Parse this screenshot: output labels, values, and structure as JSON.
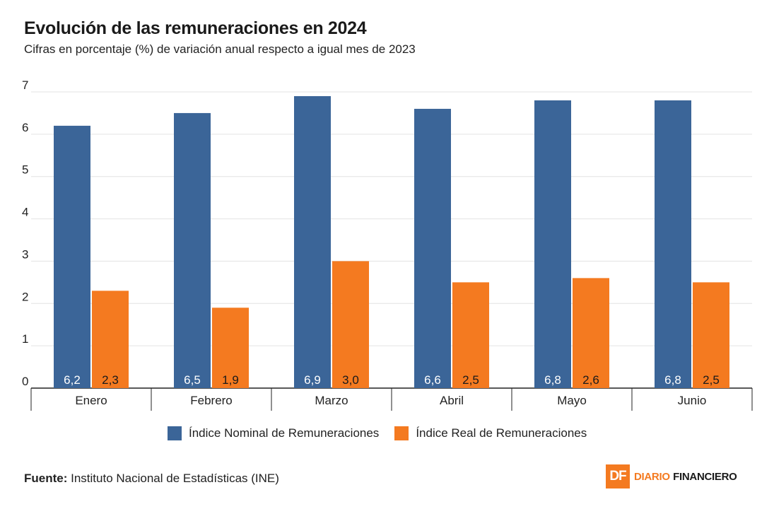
{
  "header": {
    "title": "Evolución de las remuneraciones en 2024",
    "subtitle": "Cifras en porcentaje (%) de variación anual respecto a igual mes de 2023"
  },
  "chart_data": {
    "type": "bar",
    "categories": [
      "Enero",
      "Febrero",
      "Marzo",
      "Abril",
      "Mayo",
      "Junio"
    ],
    "series": [
      {
        "name": "Índice Nominal de Remuneraciones",
        "values": [
          6.2,
          6.5,
          6.9,
          6.6,
          6.8,
          6.8
        ],
        "labels": [
          "6,2",
          "6,5",
          "6,9",
          "6,6",
          "6,8",
          "6,8"
        ],
        "color": "#3b6598"
      },
      {
        "name": "Índice Real de Remuneraciones",
        "values": [
          2.3,
          1.9,
          3.0,
          2.5,
          2.6,
          2.5
        ],
        "labels": [
          "2,3",
          "1,9",
          "3,0",
          "2,5",
          "2,6",
          "2,5"
        ],
        "color": "#f47a20"
      }
    ],
    "y_ticks": [
      "0",
      "1",
      "2",
      "3",
      "4",
      "5",
      "6",
      "7"
    ],
    "ylim": [
      0,
      7
    ],
    "grid": true,
    "legend_position": "bottom-center"
  },
  "legend": {
    "nominal": "Índice Nominal de Remuneraciones",
    "real": "Índice Real de Remuneraciones"
  },
  "footer": {
    "source_label": "Fuente:",
    "source_text": " Instituto Nacional de Estadísticas (INE)",
    "logo_mark": "DF",
    "logo_word_1": "DIARIO",
    "logo_word_2": "FINANCIERO"
  }
}
